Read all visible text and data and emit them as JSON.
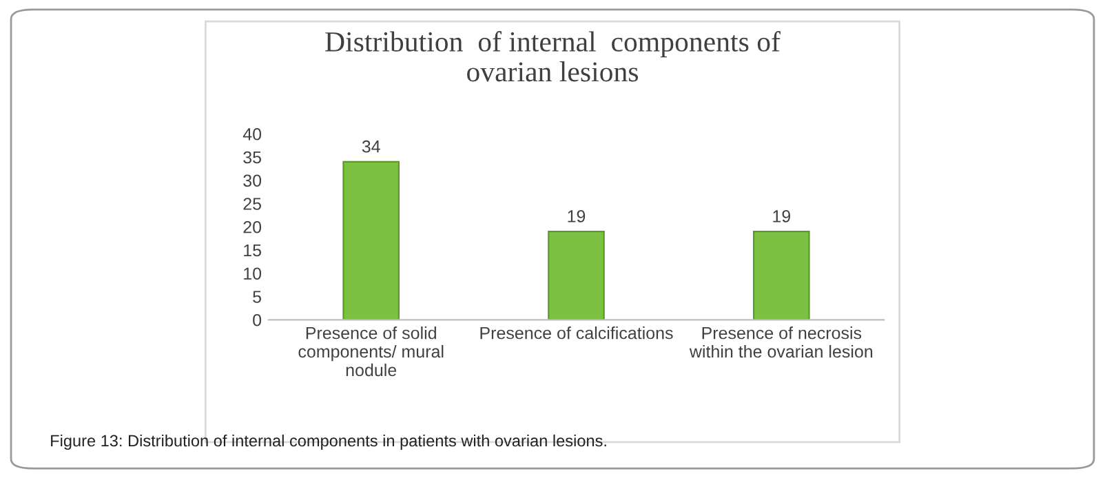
{
  "chart_data": {
    "type": "bar",
    "title": "Distribution  of internal  components of\novarian lesions",
    "categories": [
      "Presence of solid\ncomponents/ mural\nnodule",
      "Presence of calcifications",
      "Presence of necrosis\nwithin the ovarian lesion"
    ],
    "values": [
      34,
      19,
      19
    ],
    "color": "#7dc142",
    "ylim": [
      0,
      40
    ],
    "yticks": [
      0,
      5,
      10,
      15,
      20,
      25,
      30,
      35,
      40
    ],
    "grid": false,
    "data_labels": true,
    "annotations": [
      "Figure 13: Distribution of internal components in patients with ovarian lesions."
    ]
  }
}
